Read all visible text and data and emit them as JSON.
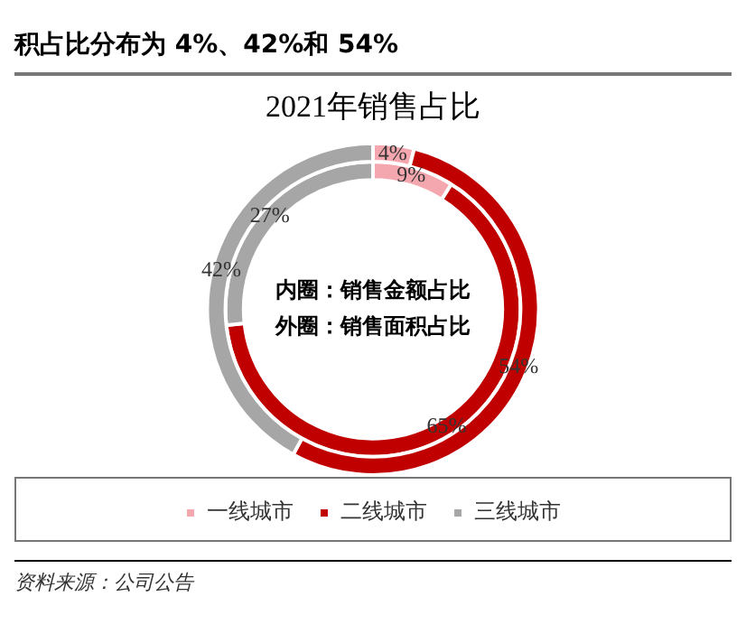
{
  "chart_data": {
    "type": "donut",
    "title": "2021年销售占比",
    "subtitle": "积占比分布为 4%、42%和 54%",
    "categories": [
      "一线城市",
      "二线城市",
      "三线城市"
    ],
    "colors": [
      "#f4a7ae",
      "#c00000",
      "#a6a6a6"
    ],
    "series": [
      {
        "values": [
          4,
          54,
          42
        ],
        "value_labels": [
          "4%",
          "54%",
          "42%"
        ]
      },
      {
        "values": [
          9,
          65,
          27
        ],
        "value_labels": [
          "9%",
          "65%",
          "27%"
        ]
      }
    ],
    "legend": "bottom",
    "annotations": [
      "内圈：销售金额占比",
      "外圈：销售面积占比",
      "资料来源：公司公告"
    ]
  }
}
